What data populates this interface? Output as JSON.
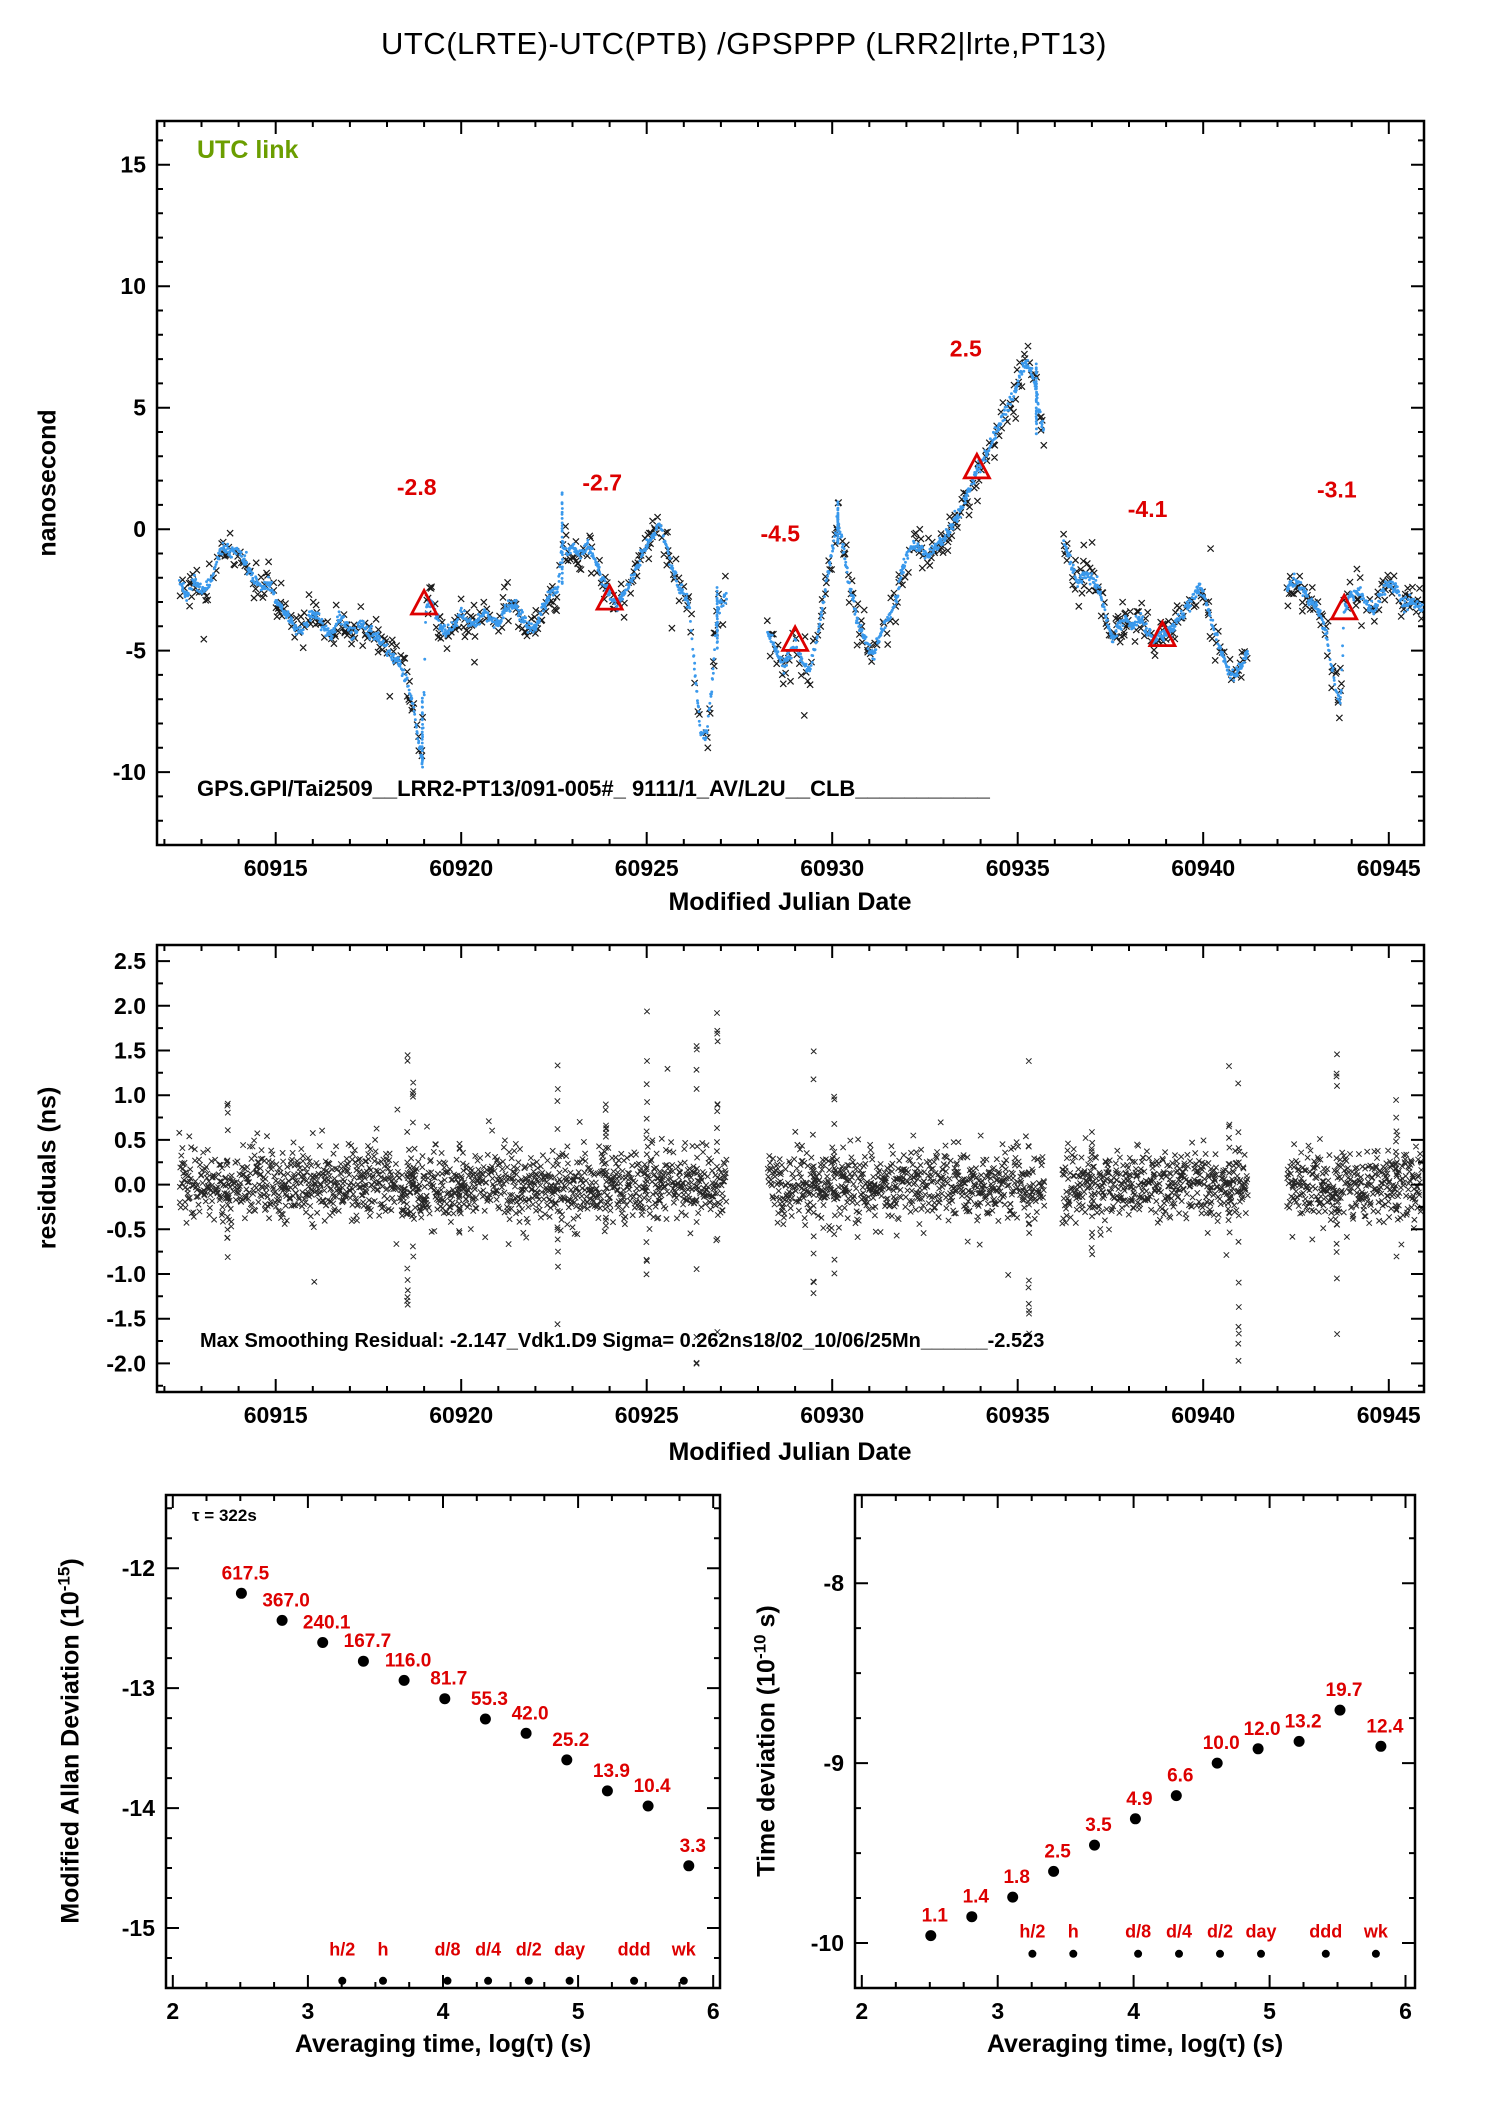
{
  "title": "UTC(LRTE)-UTC(PTB)  /GPSPPP  (LRR2|lrte,PT13)",
  "colors": {
    "blue": "#3a99ec",
    "red": "#dd0000",
    "green": "#6b9e00",
    "black": "#000000"
  },
  "chart_data": [
    {
      "type": "scatter",
      "name": "utc-link-time-series",
      "corner_label": "UTC link",
      "xlabel": "Modified Julian Date",
      "ylabel": "nanosecond",
      "footer": "GPS.GPI/Tai2509__LRR2-PT13/091-005#_  9111/1_AV/L2U__CLB___________",
      "xlim": [
        60911.8,
        60945.95
      ],
      "ylim": [
        -13.0,
        16.8
      ],
      "x_ticks": [
        60915,
        60920,
        60925,
        60930,
        60935,
        60940,
        60945
      ],
      "y_ticks": [
        -10,
        -5,
        0,
        5,
        10,
        15
      ],
      "x_range": [
        60912.4,
        60945.9
      ],
      "gaps": [
        [
          60927.15,
          60928.25
        ],
        [
          60935.7,
          60936.22
        ],
        [
          60941.2,
          60942.25
        ]
      ],
      "scatter_sigma": 0.42,
      "line_jitter": 0.12,
      "line_points": [
        [
          60912.4,
          -2.2
        ],
        [
          60912.6,
          -2.8
        ],
        [
          60912.8,
          -2.1
        ],
        [
          60913.0,
          -2.6
        ],
        [
          60913.2,
          -2.3
        ],
        [
          60913.45,
          -1.1
        ],
        [
          60913.6,
          -0.8
        ],
        [
          60913.8,
          -1.0
        ],
        [
          60914.0,
          -0.9
        ],
        [
          60914.2,
          -1.4
        ],
        [
          60914.4,
          -2.1
        ],
        [
          60914.6,
          -2.4
        ],
        [
          60914.8,
          -2.3
        ],
        [
          60915.0,
          -2.9
        ],
        [
          60915.2,
          -3.3
        ],
        [
          60915.5,
          -4.0
        ],
        [
          60915.7,
          -4.3
        ],
        [
          60915.9,
          -3.6
        ],
        [
          60916.1,
          -3.4
        ],
        [
          60916.3,
          -4.2
        ],
        [
          60916.5,
          -4.4
        ],
        [
          60916.7,
          -3.6
        ],
        [
          60916.9,
          -4.0
        ],
        [
          60917.1,
          -4.4
        ],
        [
          60917.3,
          -3.8
        ],
        [
          60917.5,
          -4.3
        ],
        [
          60917.7,
          -4.4
        ],
        [
          60917.9,
          -4.8
        ],
        [
          60918.1,
          -5.2
        ],
        [
          60918.3,
          -5.4
        ],
        [
          60918.5,
          -6.2
        ],
        [
          60918.7,
          -7.2
        ],
        [
          60918.85,
          -8.8
        ],
        [
          60918.95,
          -9.6
        ],
        [
          60919.05,
          -3.2
        ],
        [
          60919.2,
          -3.0
        ],
        [
          60919.4,
          -3.9
        ],
        [
          60919.6,
          -4.3
        ],
        [
          60919.8,
          -4.0
        ],
        [
          60920.0,
          -3.5
        ],
        [
          60920.2,
          -3.9
        ],
        [
          60920.4,
          -3.8
        ],
        [
          60920.6,
          -3.4
        ],
        [
          60920.8,
          -3.7
        ],
        [
          60921.0,
          -3.9
        ],
        [
          60921.2,
          -3.2
        ],
        [
          60921.4,
          -3.1
        ],
        [
          60921.6,
          -3.5
        ],
        [
          60921.8,
          -4.0
        ],
        [
          60922.0,
          -4.1
        ],
        [
          60922.2,
          -3.2
        ],
        [
          60922.4,
          -2.7
        ],
        [
          60922.6,
          -2.5
        ],
        [
          60922.72,
          -0.5
        ],
        [
          60922.85,
          -0.9
        ],
        [
          60923.0,
          -0.7
        ],
        [
          60923.2,
          -1.1
        ],
        [
          60923.4,
          -0.6
        ],
        [
          60923.6,
          -1.2
        ],
        [
          60923.8,
          -2.1
        ],
        [
          60924.0,
          -2.8
        ],
        [
          60924.2,
          -3.1
        ],
        [
          60924.4,
          -2.6
        ],
        [
          60924.6,
          -2.1
        ],
        [
          60924.8,
          -1.3
        ],
        [
          60925.0,
          -0.6
        ],
        [
          60925.2,
          -0.2
        ],
        [
          60925.35,
          0.2
        ],
        [
          60925.5,
          -0.6
        ],
        [
          60925.7,
          -1.6
        ],
        [
          60925.85,
          -2.4
        ],
        [
          60926.0,
          -2.6
        ],
        [
          60926.15,
          -3.2
        ],
        [
          60926.3,
          -6.0
        ],
        [
          60926.45,
          -8.3
        ],
        [
          60926.6,
          -8.6
        ],
        [
          60926.75,
          -6.5
        ],
        [
          60926.9,
          -3.4
        ],
        [
          60927.1,
          -2.8
        ],
        [
          60928.3,
          -4.4
        ],
        [
          60928.5,
          -5.1
        ],
        [
          60928.7,
          -5.6
        ],
        [
          60928.9,
          -5.0
        ],
        [
          60929.0,
          -4.6
        ],
        [
          60929.2,
          -5.5
        ],
        [
          60929.4,
          -5.8
        ],
        [
          60929.6,
          -4.4
        ],
        [
          60929.8,
          -2.6
        ],
        [
          60930.0,
          -0.8
        ],
        [
          60930.15,
          0.4
        ],
        [
          60930.3,
          -0.9
        ],
        [
          60930.5,
          -2.6
        ],
        [
          60930.7,
          -3.9
        ],
        [
          60930.9,
          -4.6
        ],
        [
          60931.1,
          -5.2
        ],
        [
          60931.3,
          -4.3
        ],
        [
          60931.5,
          -3.6
        ],
        [
          60931.7,
          -3.0
        ],
        [
          60931.9,
          -1.6
        ],
        [
          60932.1,
          -0.8
        ],
        [
          60932.3,
          -0.7
        ],
        [
          60932.5,
          -1.1
        ],
        [
          60932.7,
          -0.9
        ],
        [
          60932.9,
          -0.6
        ],
        [
          60933.1,
          -0.2
        ],
        [
          60933.3,
          0.4
        ],
        [
          60933.5,
          0.9
        ],
        [
          60933.7,
          1.6
        ],
        [
          60933.9,
          2.4
        ],
        [
          60934.1,
          3.0
        ],
        [
          60934.3,
          3.6
        ],
        [
          60934.5,
          4.3
        ],
        [
          60934.7,
          4.9
        ],
        [
          60934.9,
          5.6
        ],
        [
          60935.1,
          6.5
        ],
        [
          60935.25,
          6.9
        ],
        [
          60935.4,
          6.3
        ],
        [
          60935.55,
          5.2
        ],
        [
          60935.65,
          4.3
        ],
        [
          60936.25,
          -0.6
        ],
        [
          60936.4,
          -1.2
        ],
        [
          60936.6,
          -2.3
        ],
        [
          60936.8,
          -1.8
        ],
        [
          60937.0,
          -2.0
        ],
        [
          60937.2,
          -2.6
        ],
        [
          60937.4,
          -3.8
        ],
        [
          60937.55,
          -4.6
        ],
        [
          60937.7,
          -4.0
        ],
        [
          60937.9,
          -3.7
        ],
        [
          60938.1,
          -4.1
        ],
        [
          60938.3,
          -3.6
        ],
        [
          60938.5,
          -4.2
        ],
        [
          60938.7,
          -4.5
        ],
        [
          60938.9,
          -4.4
        ],
        [
          60939.1,
          -4.1
        ],
        [
          60939.3,
          -3.8
        ],
        [
          60939.5,
          -3.4
        ],
        [
          60939.7,
          -2.8
        ],
        [
          60939.9,
          -2.3
        ],
        [
          60940.1,
          -3.1
        ],
        [
          60940.3,
          -4.3
        ],
        [
          60940.5,
          -5.1
        ],
        [
          60940.7,
          -5.9
        ],
        [
          60940.85,
          -6.1
        ],
        [
          60941.0,
          -5.6
        ],
        [
          60941.15,
          -5.2
        ],
        [
          60942.3,
          -2.4
        ],
        [
          60942.5,
          -2.1
        ],
        [
          60942.7,
          -2.6
        ],
        [
          60942.9,
          -3.0
        ],
        [
          60943.1,
          -3.3
        ],
        [
          60943.3,
          -4.2
        ],
        [
          60943.45,
          -5.6
        ],
        [
          60943.6,
          -6.8
        ],
        [
          60943.7,
          -7.1
        ],
        [
          60943.8,
          -3.3
        ],
        [
          60944.0,
          -2.7
        ],
        [
          60944.2,
          -2.5
        ],
        [
          60944.4,
          -3.1
        ],
        [
          60944.6,
          -3.4
        ],
        [
          60944.8,
          -2.7
        ],
        [
          60945.0,
          -2.2
        ],
        [
          60945.2,
          -2.5
        ],
        [
          60945.4,
          -3.2
        ],
        [
          60945.6,
          -2.9
        ],
        [
          60945.8,
          -3.1
        ],
        [
          60945.9,
          -3.3
        ]
      ],
      "columns": [
        [
          60918.95,
          -9.8,
          -7.0
        ],
        [
          60922.72,
          -2.3,
          1.5
        ],
        [
          60926.9,
          -4.9,
          -2.4
        ],
        [
          60930.15,
          -0.6,
          1.1
        ],
        [
          60935.5,
          3.9,
          6.8
        ]
      ],
      "triangles": [
        {
          "x": 60919.0,
          "y": -3.1,
          "label": "-2.8",
          "lx": 60918.8,
          "ly": 1.4
        },
        {
          "x": 60924.0,
          "y": -2.9,
          "label": "-2.7",
          "lx": 60923.8,
          "ly": 1.6
        },
        {
          "x": 60929.0,
          "y": -4.6,
          "label": "-4.5",
          "lx": 60928.6,
          "ly": -0.5
        },
        {
          "x": 60933.9,
          "y": 2.5,
          "label": "2.5",
          "lx": 60933.6,
          "ly": 7.1
        },
        {
          "x": 60938.9,
          "y": -4.4,
          "label": "-4.1",
          "lx": 60938.5,
          "ly": 0.5
        },
        {
          "x": 60943.8,
          "y": -3.3,
          "label": "-3.1",
          "lx": 60943.6,
          "ly": 1.3
        }
      ]
    },
    {
      "type": "scatter",
      "name": "smoothing-residuals",
      "xlabel": "Modified Julian Date",
      "ylabel": "residuals (ns)",
      "annotation": "Max Smoothing Residual: -2.147_Vdk1.D9  Sigma= 0.262ns18/02_10/06/25Mn______-2.523",
      "xlim": [
        60911.8,
        60945.95
      ],
      "ylim": [
        -2.32,
        2.68
      ],
      "x_ticks": [
        60915,
        60920,
        60925,
        60930,
        60935,
        60940,
        60945
      ],
      "y_ticks": [
        -2.0,
        -1.5,
        -1.0,
        -0.5,
        0.0,
        0.5,
        1.0,
        1.5,
        2.0,
        2.5
      ],
      "x_range": [
        60912.4,
        60945.9
      ],
      "gaps": [
        [
          60927.15,
          60928.25
        ],
        [
          60935.72,
          60936.2
        ],
        [
          60941.2,
          60942.25
        ]
      ],
      "sigma": 0.21,
      "spikes": [
        [
          60913.7,
          -1.3,
          1.05
        ],
        [
          60918.55,
          -1.6,
          1.85
        ],
        [
          60918.7,
          -1.2,
          1.3
        ],
        [
          60919.95,
          -0.7,
          0.85
        ],
        [
          60922.6,
          -1.9,
          1.8
        ],
        [
          60923.9,
          -0.9,
          0.9
        ],
        [
          60925.0,
          -1.1,
          1.95
        ],
        [
          60926.35,
          -2.05,
          1.85
        ],
        [
          60926.9,
          -2.1,
          2.1
        ],
        [
          60929.5,
          -1.75,
          1.65
        ],
        [
          60930.05,
          -1.0,
          1.0
        ],
        [
          60935.3,
          -1.9,
          1.8
        ],
        [
          60937.0,
          -0.8,
          0.8
        ],
        [
          60940.7,
          -1.6,
          1.5
        ],
        [
          60940.95,
          -2.1,
          1.3
        ],
        [
          60943.6,
          -1.85,
          1.75
        ],
        [
          60945.2,
          -0.9,
          1.05
        ]
      ]
    },
    {
      "type": "scatter",
      "name": "modified-allan-deviation",
      "xlabel": "Averaging time, log(τ) (s)",
      "ylabel_pre": "Modified Allan Deviation (10",
      "ylabel_exp": "-15",
      "ylabel_post": ")",
      "tau_annotation": "τ = 322s",
      "xlim": [
        1.95,
        6.05
      ],
      "ylim": [
        -15.5,
        -11.39
      ],
      "x_ticks": [
        2,
        3,
        4,
        5,
        6
      ],
      "y_ticks": [
        -15,
        -14,
        -13,
        -12
      ],
      "exp_offset": -15,
      "points": [
        {
          "logtau": 2.508,
          "value": 617.5
        },
        {
          "logtau": 2.809,
          "value": 367.0
        },
        {
          "logtau": 3.11,
          "value": 240.1
        },
        {
          "logtau": 3.411,
          "value": 167.7
        },
        {
          "logtau": 3.712,
          "value": 116.0
        },
        {
          "logtau": 4.013,
          "value": 81.7
        },
        {
          "logtau": 4.314,
          "value": 55.3
        },
        {
          "logtau": 4.615,
          "value": 42.0
        },
        {
          "logtau": 4.916,
          "value": 25.2
        },
        {
          "logtau": 5.217,
          "value": 13.9
        },
        {
          "logtau": 5.518,
          "value": 10.4
        },
        {
          "logtau": 5.819,
          "value": 3.3
        }
      ],
      "value_labels": [
        "617.5",
        "367.0",
        "240.1",
        "167.7",
        "116.0",
        "81.7",
        "55.3",
        "42.0",
        "25.2",
        "13.9",
        "10.4",
        "3.3"
      ],
      "time_markers": [
        {
          "label": "h/2",
          "logtau": 3.255
        },
        {
          "label": "h",
          "logtau": 3.556
        },
        {
          "label": "d/8",
          "logtau": 4.033
        },
        {
          "label": "d/4",
          "logtau": 4.334
        },
        {
          "label": "d/2",
          "logtau": 4.635
        },
        {
          "label": "day",
          "logtau": 4.937
        },
        {
          "label": "ddd",
          "logtau": 5.414
        },
        {
          "label": "wk",
          "logtau": 5.782
        }
      ],
      "marker_dot_y": -15.44,
      "marker_label_y": -15.23
    },
    {
      "type": "scatter",
      "name": "time-deviation",
      "xlabel": "Averaging time, log(τ) (s)",
      "ylabel_pre": "Time deviation (10",
      "ylabel_exp": "-10",
      "ylabel_post": " s)",
      "xlim": [
        1.95,
        6.07
      ],
      "ylim": [
        -10.25,
        -7.51
      ],
      "x_ticks": [
        2,
        3,
        4,
        5,
        6
      ],
      "y_ticks": [
        -10,
        -9,
        -8
      ],
      "exp_offset": -10,
      "points": [
        {
          "logtau": 2.508,
          "value": 1.1
        },
        {
          "logtau": 2.809,
          "value": 1.4
        },
        {
          "logtau": 3.11,
          "value": 1.8
        },
        {
          "logtau": 3.411,
          "value": 2.5
        },
        {
          "logtau": 3.712,
          "value": 3.5
        },
        {
          "logtau": 4.013,
          "value": 4.9
        },
        {
          "logtau": 4.314,
          "value": 6.6
        },
        {
          "logtau": 4.615,
          "value": 10.0
        },
        {
          "logtau": 4.916,
          "value": 12.0
        },
        {
          "logtau": 5.217,
          "value": 13.2
        },
        {
          "logtau": 5.518,
          "value": 19.7
        },
        {
          "logtau": 5.819,
          "value": 12.4
        }
      ],
      "value_labels": [
        "1.1",
        "1.4",
        "1.8",
        "2.5",
        "3.5",
        "4.9",
        "6.6",
        "10.0",
        "12.0",
        "13.2",
        "19.7",
        "12.4"
      ],
      "time_markers": [
        {
          "label": "h/2",
          "logtau": 3.255
        },
        {
          "label": "h",
          "logtau": 3.556
        },
        {
          "label": "d/8",
          "logtau": 4.033
        },
        {
          "label": "d/4",
          "logtau": 4.334
        },
        {
          "label": "d/2",
          "logtau": 4.635
        },
        {
          "label": "day",
          "logtau": 4.937
        },
        {
          "label": "ddd",
          "logtau": 5.414
        },
        {
          "label": "wk",
          "logtau": 5.782
        }
      ],
      "marker_dot_y": -10.06,
      "marker_label_y": -9.97
    }
  ]
}
